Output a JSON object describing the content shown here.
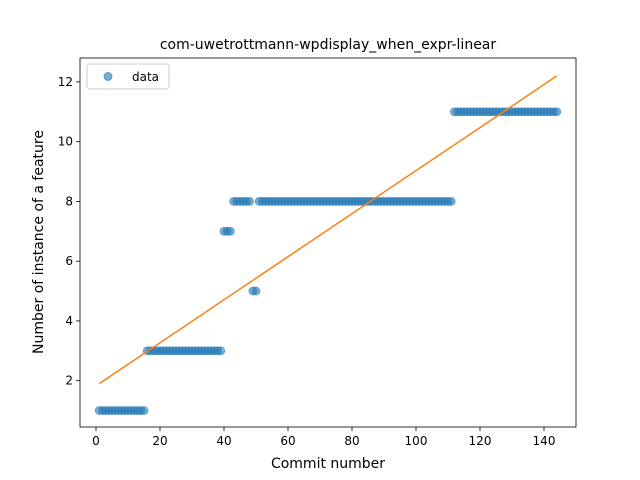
{
  "chart_data": {
    "type": "scatter",
    "title": "com-uwetrottmann-wpdisplay_when_expr-linear",
    "xlabel": "Commit number",
    "ylabel": "Number of instance of a feature",
    "xlim": [
      -5,
      150
    ],
    "ylim": [
      0.45,
      12.8
    ],
    "xticks": [
      0,
      20,
      40,
      60,
      80,
      100,
      120,
      140
    ],
    "yticks": [
      2,
      4,
      6,
      8,
      10,
      12
    ],
    "legend": {
      "placement": "top-left",
      "entries": [
        "data"
      ]
    },
    "colors": {
      "points": "#1f77b4",
      "fit": "#ff7f0e"
    },
    "series": [
      {
        "name": "data",
        "kind": "scatter",
        "segments": [
          {
            "x_from": 1,
            "x_to": 15,
            "y": 1
          },
          {
            "x_from": 16,
            "x_to": 39,
            "y": 3
          },
          {
            "x_from": 40,
            "x_to": 42,
            "y": 7
          },
          {
            "x_from": 43,
            "x_to": 48,
            "y": 8
          },
          {
            "x_from": 49,
            "x_to": 50,
            "y": 5
          },
          {
            "x_from": 51,
            "x_to": 111,
            "y": 8
          },
          {
            "x_from": 112,
            "x_to": 144,
            "y": 11
          }
        ]
      },
      {
        "name": "",
        "kind": "line",
        "x": [
          1,
          144
        ],
        "y": [
          1.9,
          12.2
        ]
      }
    ]
  }
}
